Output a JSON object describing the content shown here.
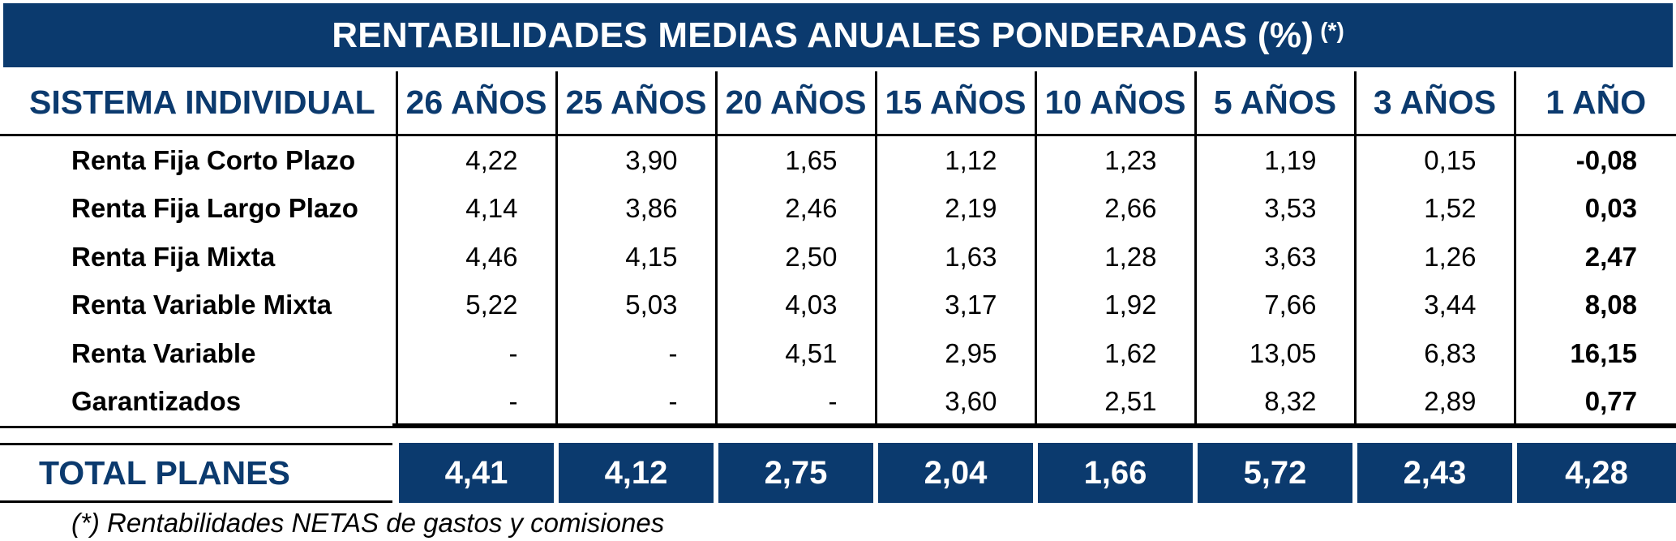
{
  "title": "RENTABILIDADES MEDIAS ANUALES PONDERADAS (%)",
  "title_note_mark": "(*)",
  "colors": {
    "navy": "#0b3a6e",
    "text": "#000000",
    "white": "#ffffff"
  },
  "header": {
    "system_label": "SISTEMA INDIVIDUAL",
    "periods": [
      "26 AÑOS",
      "25 AÑOS",
      "20 AÑOS",
      "15 AÑOS",
      "10 AÑOS",
      "5 AÑOS",
      "3 AÑOS",
      "1 AÑO"
    ]
  },
  "rows": [
    {
      "label": "Renta Fija Corto Plazo",
      "values": [
        "4,22",
        "3,90",
        "1,65",
        "1,12",
        "1,23",
        "1,19",
        "0,15",
        "-0,08"
      ]
    },
    {
      "label": "Renta Fija Largo Plazo",
      "values": [
        "4,14",
        "3,86",
        "2,46",
        "2,19",
        "2,66",
        "3,53",
        "1,52",
        "0,03"
      ]
    },
    {
      "label": "Renta Fija Mixta",
      "values": [
        "4,46",
        "4,15",
        "2,50",
        "1,63",
        "1,28",
        "3,63",
        "1,26",
        "2,47"
      ]
    },
    {
      "label": "Renta Variable Mixta",
      "values": [
        "5,22",
        "5,03",
        "4,03",
        "3,17",
        "1,92",
        "7,66",
        "3,44",
        "8,08"
      ]
    },
    {
      "label": "Renta Variable",
      "values": [
        "-",
        "-",
        "4,51",
        "2,95",
        "1,62",
        "13,05",
        "6,83",
        "16,15"
      ]
    },
    {
      "label": "Garantizados",
      "values": [
        "-",
        "-",
        "-",
        "3,60",
        "2,51",
        "8,32",
        "2,89",
        "0,77"
      ]
    }
  ],
  "total": {
    "label": "TOTAL PLANES",
    "values": [
      "4,41",
      "4,12",
      "2,75",
      "2,04",
      "1,66",
      "5,72",
      "2,43",
      "4,28"
    ]
  },
  "footnote": "(*) Rentabilidades NETAS de gastos y comisiones",
  "chart_data": {
    "type": "table",
    "title": "RENTABILIDADES MEDIAS ANUALES PONDERADAS (%)",
    "columns": [
      "26 AÑOS",
      "25 AÑOS",
      "20 AÑOS",
      "15 AÑOS",
      "10 AÑOS",
      "5 AÑOS",
      "3 AÑOS",
      "1 AÑO"
    ],
    "series": [
      {
        "name": "Renta Fija Corto Plazo",
        "values": [
          4.22,
          3.9,
          1.65,
          1.12,
          1.23,
          1.19,
          0.15,
          -0.08
        ]
      },
      {
        "name": "Renta Fija Largo Plazo",
        "values": [
          4.14,
          3.86,
          2.46,
          2.19,
          2.66,
          3.53,
          1.52,
          0.03
        ]
      },
      {
        "name": "Renta Fija Mixta",
        "values": [
          4.46,
          4.15,
          2.5,
          1.63,
          1.28,
          3.63,
          1.26,
          2.47
        ]
      },
      {
        "name": "Renta Variable Mixta",
        "values": [
          5.22,
          5.03,
          4.03,
          3.17,
          1.92,
          7.66,
          3.44,
          8.08
        ]
      },
      {
        "name": "Renta Variable",
        "values": [
          null,
          null,
          4.51,
          2.95,
          1.62,
          13.05,
          6.83,
          16.15
        ]
      },
      {
        "name": "Garantizados",
        "values": [
          null,
          null,
          null,
          3.6,
          2.51,
          8.32,
          2.89,
          0.77
        ]
      },
      {
        "name": "TOTAL PLANES",
        "values": [
          4.41,
          4.12,
          2.75,
          2.04,
          1.66,
          5.72,
          2.43,
          4.28
        ]
      }
    ]
  }
}
